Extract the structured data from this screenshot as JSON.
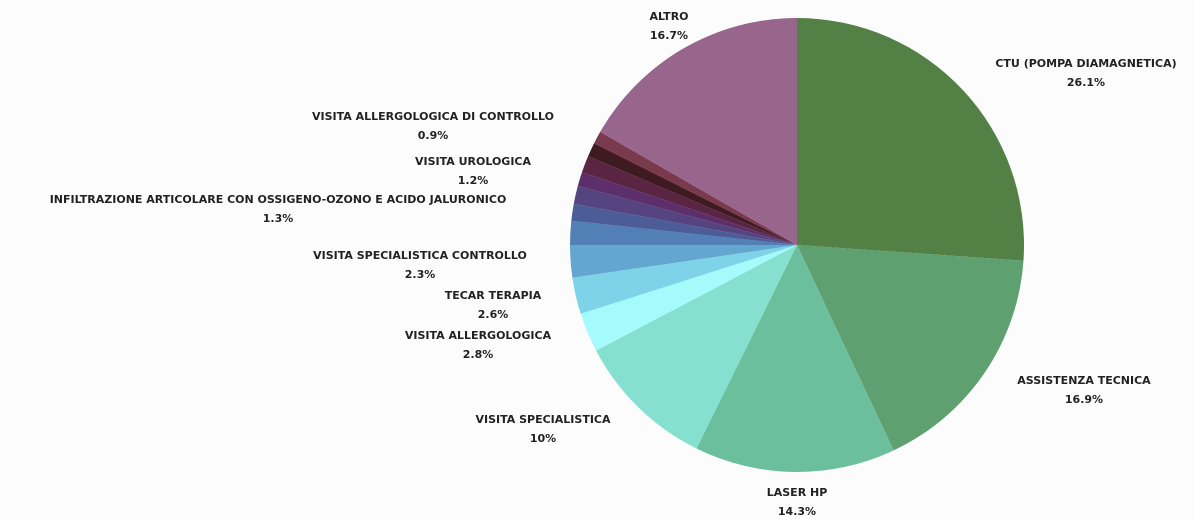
{
  "chart_data": {
    "type": "pie",
    "categories": [
      "CTU (POMPA DIAMAGNETICA)",
      "ASSISTENZA TECNICA",
      "LASER HP",
      "VISITA SPECIALISTICA",
      "VISITA ALLERGOLOGICA",
      "TECAR TERAPIA",
      "VISITA SPECIALISTICA CONTROLLO",
      null,
      null,
      "INFILTRAZIONE ARTICOLARE CON OSSIGENO-OZONO E ACIDO JALURONICO",
      null,
      "VISITA UROLOGICA",
      null,
      "VISITA ALLERGOLOGICA DI CONTROLLO",
      "ALTRO"
    ],
    "values": [
      26.1,
      16.9,
      14.3,
      10,
      2.8,
      2.6,
      2.3,
      1.7,
      1.2,
      1.3,
      1.0,
      1.2,
      1.0,
      0.9,
      16.7
    ],
    "value_labels": [
      "26.1%",
      "16.9%",
      "14.3%",
      "10%",
      "2.8%",
      "2.6%",
      "2.3%",
      null,
      null,
      "1.3%",
      null,
      "1.2%",
      null,
      "0.9%",
      "16.7%"
    ],
    "colors": [
      "#538044",
      "#5ea06f",
      "#6cbf9c",
      "#86e0d0",
      "#a5fbfb",
      "#7ed3e8",
      "#63a6cf",
      "#527fb5",
      "#4b5c97",
      "#55447f",
      "#5d2f6a",
      "#5a2543",
      "#3f1a20",
      "#7a3a4e",
      "#98658d"
    ]
  }
}
